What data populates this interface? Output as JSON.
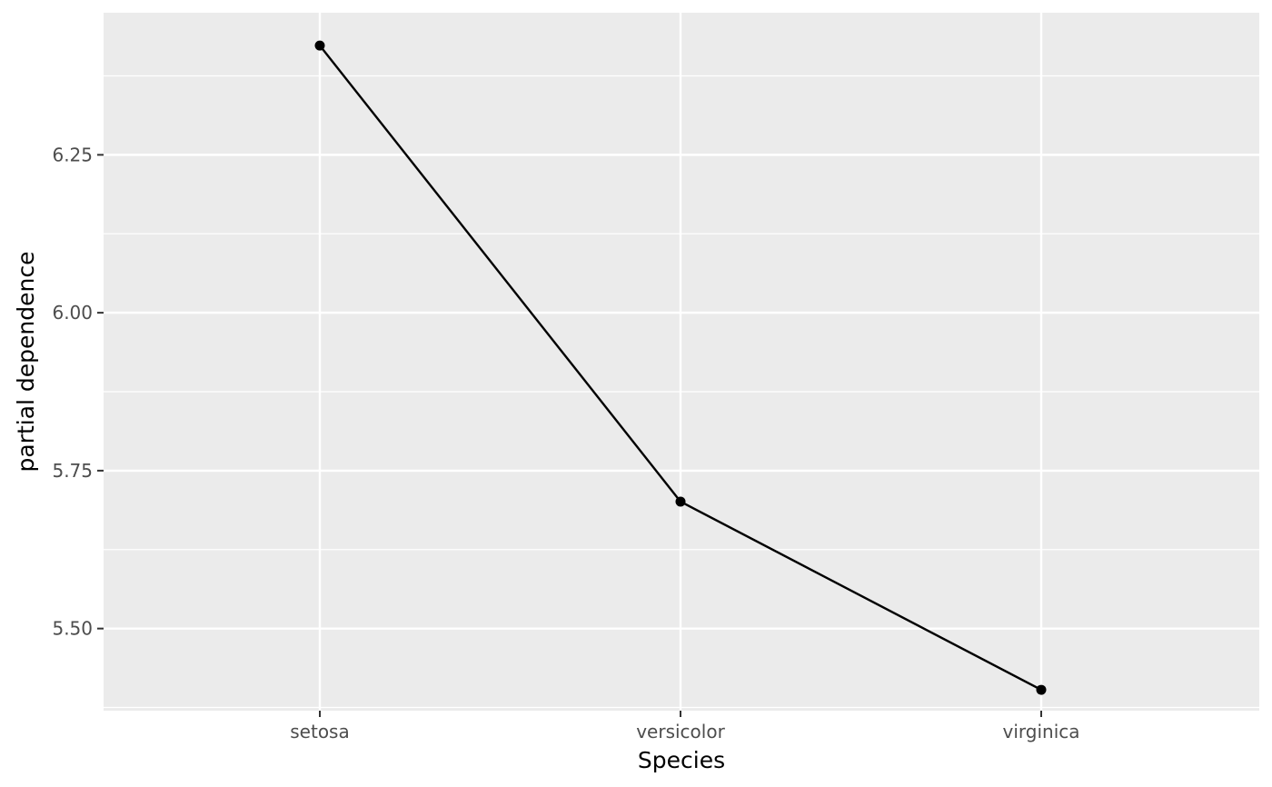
{
  "chart_data": {
    "type": "line",
    "title": "",
    "xlabel": "Species",
    "ylabel": "partial dependence",
    "categories": [
      "setosa",
      "versicolor",
      "virginica"
    ],
    "series": [
      {
        "values": [
          6.423,
          5.701,
          5.403
        ]
      }
    ],
    "ylim": [
      5.37,
      6.475
    ],
    "yticks": [
      5.5,
      5.75,
      6.0,
      6.25
    ],
    "ytick_labels": [
      "5.50",
      "5.75",
      "6.00",
      "6.25"
    ],
    "markers": true,
    "grid": true,
    "legend": "none",
    "colors": {
      "panel": "#ebebeb",
      "grid": "#ffffff",
      "line": "#000000",
      "tick": "#333333"
    }
  }
}
